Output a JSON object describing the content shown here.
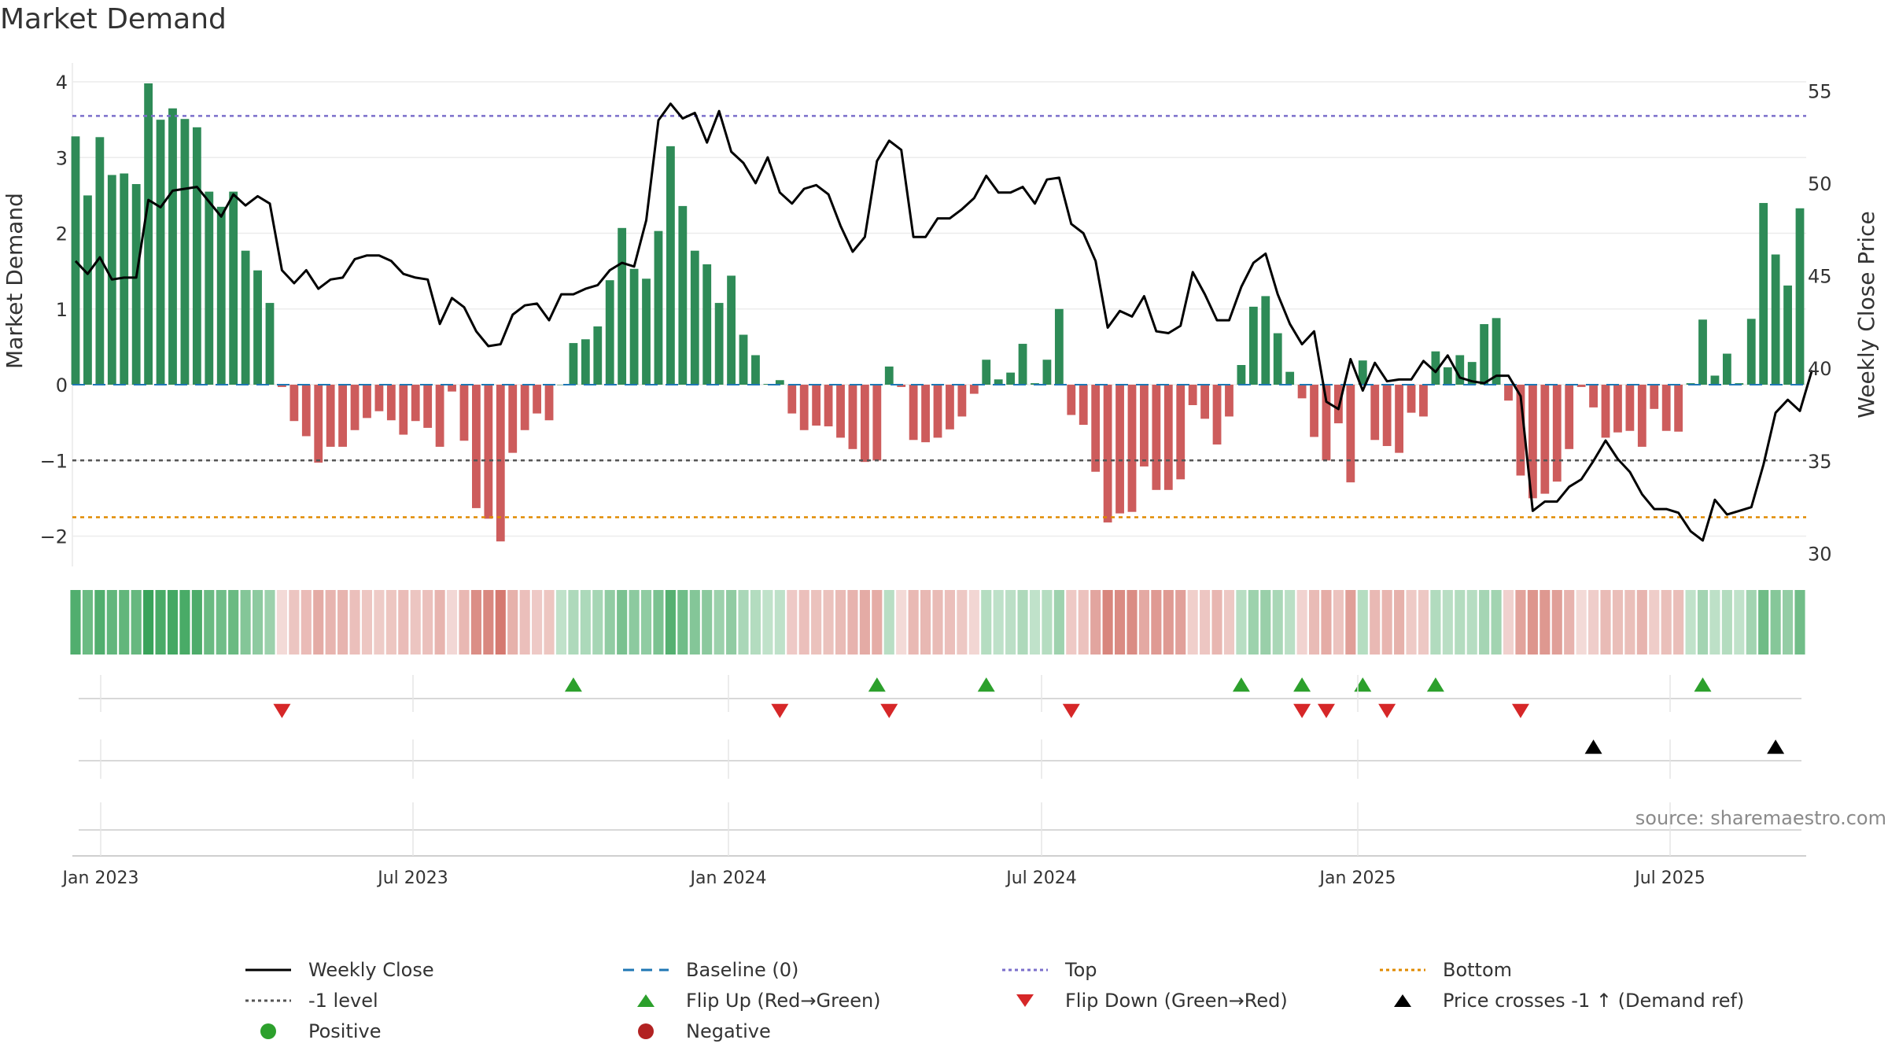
{
  "title": "Market Demand",
  "source": "source: sharemaestro.com",
  "chart_data": {
    "type": "bar+line",
    "ylabel_left": "Market Demand",
    "ylabel_right": "Weekly Close Price",
    "ylim_left": [
      -2.4,
      4.25
    ],
    "ylim_right": [
      29.3,
      56.5
    ],
    "yticks_left": [
      -2,
      -1,
      0,
      1,
      2,
      3,
      4
    ],
    "yticks_right": [
      30,
      35,
      40,
      45,
      50,
      55
    ],
    "x_ticks": [
      "Jan 2023",
      "Jul 2023",
      "Jan 2024",
      "Jul 2024",
      "Jan 2025",
      "Jul 2025"
    ],
    "reference_lines": {
      "top": 3.55,
      "bottom": -1.75,
      "minus_one": -1,
      "baseline": 0
    },
    "demand": [
      3.28,
      2.5,
      3.27,
      2.77,
      2.79,
      2.65,
      3.98,
      3.5,
      3.65,
      3.51,
      3.4,
      2.55,
      2.35,
      2.55,
      1.77,
      1.51,
      1.08,
      -0.03,
      -0.48,
      -0.68,
      -1.03,
      -0.82,
      -0.82,
      -0.6,
      -0.44,
      -0.35,
      -0.47,
      -0.66,
      -0.48,
      -0.57,
      -0.82,
      -0.09,
      -0.74,
      -1.63,
      -1.77,
      -2.07,
      -0.9,
      -0.6,
      -0.38,
      -0.47,
      0,
      0.55,
      0.6,
      0.77,
      1.38,
      2.07,
      1.53,
      1.4,
      2.03,
      3.15,
      2.36,
      1.77,
      1.59,
      1.08,
      1.44,
      0.66,
      0.39,
      0.01,
      0.06,
      -0.38,
      -0.6,
      -0.54,
      -0.55,
      -0.7,
      -0.85,
      -1.02,
      -1.0,
      0.24,
      -0.03,
      -0.73,
      -0.76,
      -0.7,
      -0.59,
      -0.42,
      -0.12,
      0.33,
      0.07,
      0.16,
      0.54,
      0.02,
      0.33,
      1.0,
      -0.4,
      -0.53,
      -1.15,
      -1.82,
      -1.7,
      -1.68,
      -1.08,
      -1.39,
      -1.39,
      -1.25,
      -0.27,
      -0.45,
      -0.79,
      -0.42,
      0.26,
      1.03,
      1.17,
      0.68,
      0.17,
      -0.18,
      -0.69,
      -1.0,
      -0.51,
      -1.29,
      0.32,
      -0.73,
      -0.81,
      -0.9,
      -0.37,
      -0.42,
      0.44,
      0.23,
      0.39,
      0.3,
      0.8,
      0.88,
      -0.21,
      -1.2,
      -1.5,
      -1.44,
      -1.28,
      -0.85,
      -0.03,
      -0.3,
      -0.7,
      -0.63,
      -0.61,
      -0.82,
      -0.32,
      -0.61,
      -0.62,
      0.02,
      0.86,
      0.12,
      0.41,
      0.02,
      0.87,
      2.4,
      1.72,
      1.31,
      2.33
    ],
    "weekly_close": [
      45.8,
      45.1,
      46.0,
      44.8,
      44.9,
      44.9,
      49.1,
      48.7,
      49.6,
      49.7,
      49.8,
      49.0,
      48.2,
      49.4,
      48.8,
      49.3,
      48.9,
      45.3,
      44.6,
      45.3,
      44.3,
      44.8,
      44.9,
      45.9,
      46.1,
      46.1,
      45.8,
      45.1,
      44.9,
      44.8,
      42.4,
      43.8,
      43.3,
      42.0,
      41.2,
      41.3,
      42.9,
      43.4,
      43.5,
      42.6,
      44.0,
      44.0,
      44.3,
      44.5,
      45.3,
      45.7,
      45.5,
      48.0,
      53.4,
      54.3,
      53.5,
      53.8,
      52.2,
      53.9,
      51.7,
      51.1,
      50.0,
      51.4,
      49.5,
      48.9,
      49.7,
      49.9,
      49.4,
      47.7,
      46.3,
      47.1,
      51.2,
      52.3,
      51.8,
      47.1,
      47.1,
      48.1,
      48.1,
      48.6,
      49.2,
      50.4,
      49.5,
      49.5,
      49.8,
      48.9,
      50.2,
      50.3,
      47.8,
      47.3,
      45.8,
      42.2,
      43.1,
      42.8,
      43.9,
      42.0,
      41.9,
      42.3,
      45.2,
      44.0,
      42.6,
      42.6,
      44.4,
      45.7,
      46.2,
      44.0,
      42.4,
      41.3,
      42.0,
      38.2,
      37.8,
      40.5,
      38.8,
      40.3,
      39.3,
      39.4,
      39.4,
      40.4,
      39.8,
      40.7,
      39.5,
      39.3,
      39.2,
      39.6,
      39.6,
      38.5,
      32.3,
      32.8,
      32.8,
      33.6,
      34.0,
      35.0,
      36.1,
      35.1,
      34.4,
      33.2,
      32.4,
      32.4,
      32.2,
      31.2,
      30.7,
      32.9,
      32.1,
      32.3,
      32.5,
      34.8,
      37.6,
      38.3,
      37.7,
      39.9
    ],
    "flip_up_weeks": [
      41,
      66,
      75,
      96,
      101,
      106,
      112,
      134
    ],
    "flip_down_weeks": [
      17,
      58,
      67,
      82,
      101,
      103,
      108,
      119
    ],
    "price_cross_weeks": [
      125,
      140
    ]
  },
  "legend": [
    {
      "label": "Weekly Close",
      "marker": "solid-line",
      "color": "#000000"
    },
    {
      "label": "Baseline (0)",
      "marker": "dashed-line",
      "color": "#1f77b4"
    },
    {
      "label": "Top",
      "marker": "dotted-line",
      "color": "#7b6fcb"
    },
    {
      "label": "Bottom",
      "marker": "dotted-line",
      "color": "#e08a00"
    },
    {
      "label": "-1 level",
      "marker": "dotted-line",
      "color": "#555555"
    },
    {
      "label": "Flip Up (Red→Green)",
      "marker": "up-triangle",
      "color": "#2ca02c"
    },
    {
      "label": "Flip Down (Green→Red)",
      "marker": "down-triangle",
      "color": "#d62728"
    },
    {
      "label": "Price crosses -1 ↑ (Demand ref)",
      "marker": "up-triangle",
      "color": "#000000"
    },
    {
      "label": "Positive",
      "marker": "dot",
      "color": "#2ca02c"
    },
    {
      "label": "Negative",
      "marker": "dot",
      "color": "#b22222"
    }
  ],
  "colors": {
    "positive_bar": "#2e8b57",
    "negative_bar": "#cd5c5c",
    "line": "#000000"
  }
}
